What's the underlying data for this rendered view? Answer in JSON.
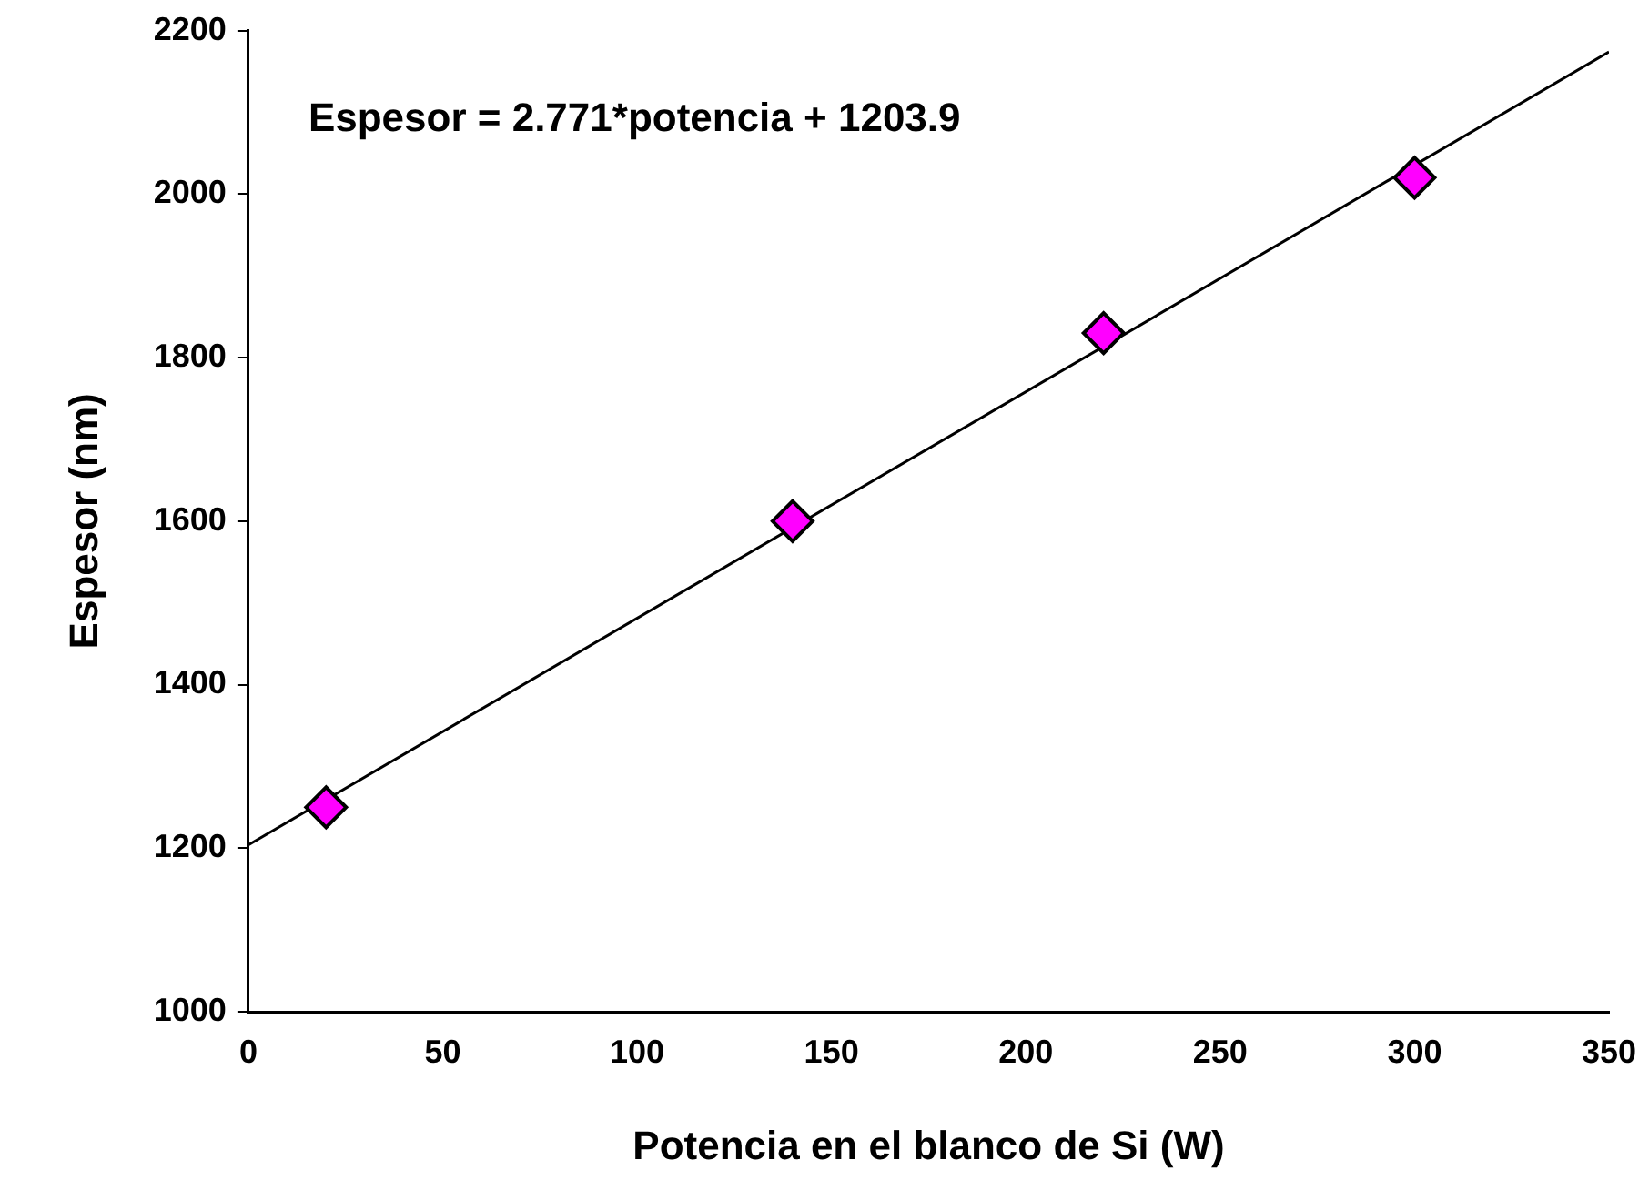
{
  "chart_data": {
    "type": "scatter",
    "xlabel": "Potencia en el blanco de Si (W)",
    "ylabel": "Espesor (nm)",
    "annotations": [
      "Espesor = 2.771*potencia + 1203.9"
    ],
    "x": [
      20,
      140,
      220,
      300
    ],
    "series": [
      {
        "color": "#ff00ff",
        "marker": "diamond",
        "values": [
          1250,
          1600,
          1830,
          2020
        ]
      },
      {
        "type": "line",
        "x": [
          0,
          350
        ],
        "color": "#000000",
        "marker": "none",
        "values": [
          1204,
          2174
        ]
      }
    ],
    "xlim": [
      0,
      350
    ],
    "xticks": [
      0,
      50,
      100,
      150,
      200,
      250,
      300,
      350
    ],
    "ylim": [
      1000,
      2200
    ],
    "yticks": [
      1000,
      1200,
      1400,
      1600,
      1800,
      2000,
      2200
    ],
    "grid": false,
    "legend": false
  }
}
